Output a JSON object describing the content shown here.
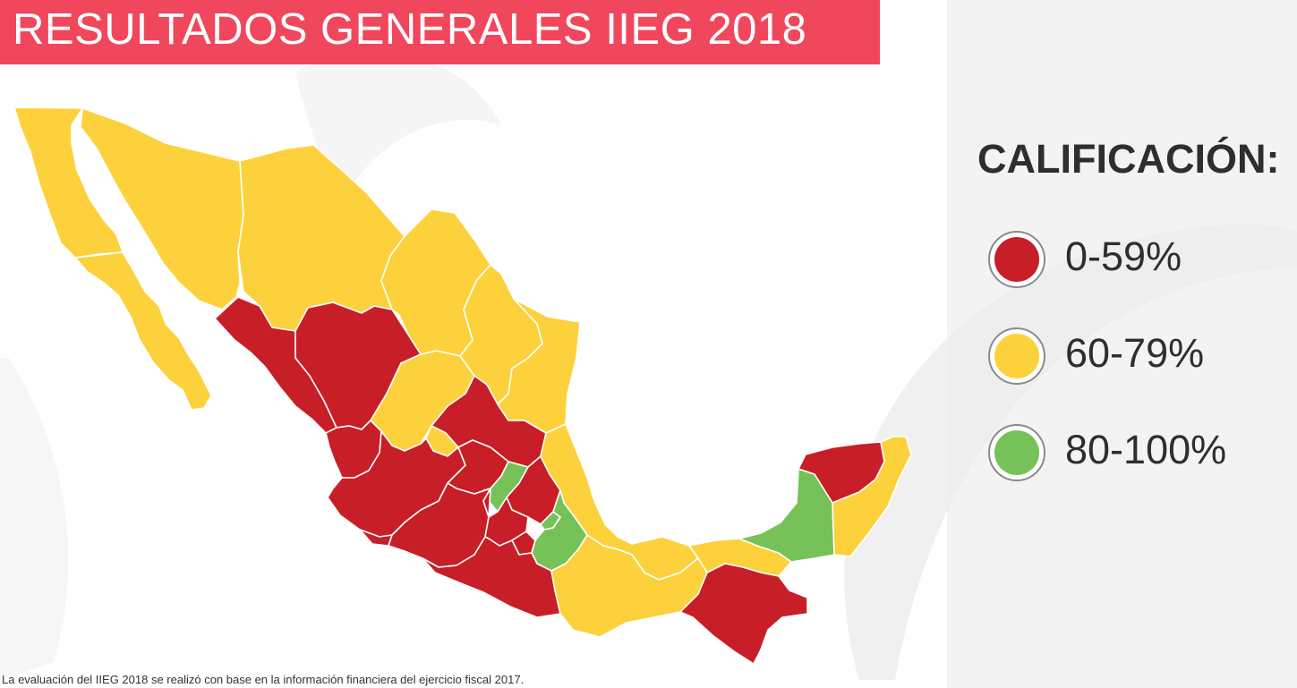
{
  "title": "RESULTADOS GENERALES IIEG 2018",
  "legend": {
    "heading": "CALIFICACIÓN:",
    "items": [
      {
        "label": "0-59%",
        "color": "#c81e27"
      },
      {
        "label": "60-79%",
        "color": "#fdd13b"
      },
      {
        "label": "80-100%",
        "color": "#76c258"
      }
    ]
  },
  "footnote": "La evaluación del IIEG 2018 se realizó con base en la información financiera del ejercicio fiscal 2017.",
  "colors": {
    "banner": "#f0475d",
    "panel": "#f3f3f3",
    "low": "#c81e27",
    "mid": "#fdd13b",
    "high": "#76c258"
  },
  "map": {
    "regions": [
      {
        "name": "baja-california",
        "category": "mid"
      },
      {
        "name": "baja-california-sur",
        "category": "mid"
      },
      {
        "name": "sonora",
        "category": "mid"
      },
      {
        "name": "chihuahua",
        "category": "mid"
      },
      {
        "name": "coahuila",
        "category": "mid"
      },
      {
        "name": "nuevo-leon",
        "category": "mid"
      },
      {
        "name": "tamaulipas",
        "category": "mid"
      },
      {
        "name": "sinaloa",
        "category": "low"
      },
      {
        "name": "durango",
        "category": "low"
      },
      {
        "name": "zacatecas",
        "category": "mid"
      },
      {
        "name": "san-luis-potosi",
        "category": "low"
      },
      {
        "name": "nayarit",
        "category": "low"
      },
      {
        "name": "aguascalientes",
        "category": "mid"
      },
      {
        "name": "jalisco",
        "category": "low"
      },
      {
        "name": "guanajuato",
        "category": "low"
      },
      {
        "name": "queretaro",
        "category": "high"
      },
      {
        "name": "hidalgo",
        "category": "low"
      },
      {
        "name": "veracruz",
        "category": "mid"
      },
      {
        "name": "colima",
        "category": "low"
      },
      {
        "name": "michoacan",
        "category": "low"
      },
      {
        "name": "estado-de-mexico",
        "category": "low"
      },
      {
        "name": "tlaxcala",
        "category": "high"
      },
      {
        "name": "morelos",
        "category": "low"
      },
      {
        "name": "puebla",
        "category": "high"
      },
      {
        "name": "guerrero",
        "category": "low"
      },
      {
        "name": "oaxaca",
        "category": "mid"
      },
      {
        "name": "tabasco",
        "category": "mid"
      },
      {
        "name": "chiapas",
        "category": "low"
      },
      {
        "name": "campeche",
        "category": "high"
      },
      {
        "name": "yucatan",
        "category": "low"
      },
      {
        "name": "quintana-roo",
        "category": "mid"
      }
    ]
  }
}
